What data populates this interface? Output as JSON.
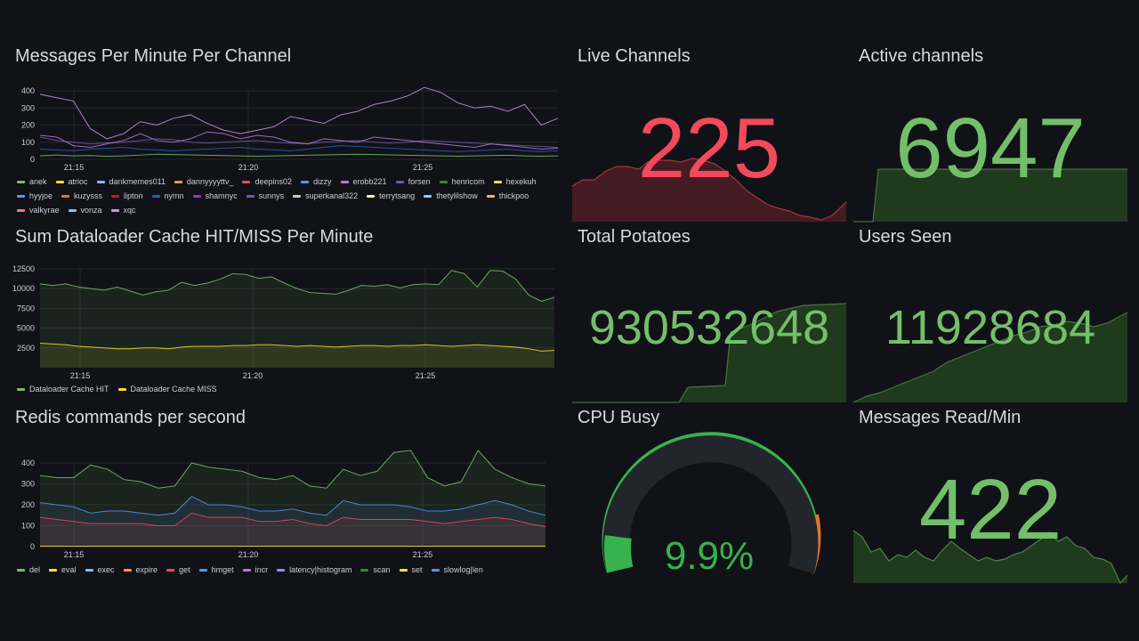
{
  "panels": {
    "messages": {
      "title": "Messages Per Minute Per Channel",
      "legend": [
        {
          "name": "anek",
          "color": "#73bf69"
        },
        {
          "name": "atrioc",
          "color": "#fade2a"
        },
        {
          "name": "dankmemes011",
          "color": "#8ab8ff"
        },
        {
          "name": "dannyyyyttv_",
          "color": "#ff9830"
        },
        {
          "name": "deepins02",
          "color": "#f2495c"
        },
        {
          "name": "dizzy",
          "color": "#5794f2"
        },
        {
          "name": "erobb221",
          "color": "#b877d9"
        },
        {
          "name": "forsen",
          "color": "#705da0"
        },
        {
          "name": "henricom",
          "color": "#37872d"
        },
        {
          "name": "hexekuh",
          "color": "#fade2a"
        },
        {
          "name": "hyyjoe",
          "color": "#5794f2"
        },
        {
          "name": "kuzysss",
          "color": "#e0752d"
        },
        {
          "name": "lipton",
          "color": "#c4162a"
        },
        {
          "name": "nymn",
          "color": "#1f60c4"
        },
        {
          "name": "shamnyc",
          "color": "#8f3bb8"
        },
        {
          "name": "sunnys",
          "color": "#705da0"
        },
        {
          "name": "superkanal322",
          "color": "#b6d7a8"
        },
        {
          "name": "terrytsang",
          "color": "#fff899"
        },
        {
          "name": "thetylilshow",
          "color": "#8ac8ff"
        },
        {
          "name": "thickpoo",
          "color": "#ffb357"
        },
        {
          "name": "valkyrae",
          "color": "#ff7383"
        },
        {
          "name": "vonza",
          "color": "#8ab8ff"
        },
        {
          "name": "xqc",
          "color": "#ca95e5"
        }
      ]
    },
    "cache": {
      "title": "Sum Dataloader Cache HIT/MISS Per Minute",
      "legend": [
        {
          "name": "Dataloader Cache HIT",
          "color": "#73bf69"
        },
        {
          "name": "Dataloader Cache MISS",
          "color": "#fade2a"
        }
      ]
    },
    "redis": {
      "title": "Redis commands per second",
      "legend": [
        {
          "name": "del",
          "color": "#73bf69"
        },
        {
          "name": "eval",
          "color": "#fade2a"
        },
        {
          "name": "exec",
          "color": "#8ab8ff"
        },
        {
          "name": "expire",
          "color": "#ff9830"
        },
        {
          "name": "get",
          "color": "#f2495c"
        },
        {
          "name": "hmget",
          "color": "#5794f2"
        },
        {
          "name": "incr",
          "color": "#b877d9"
        },
        {
          "name": "latency|histogram",
          "color": "#8f8ff0"
        },
        {
          "name": "scan",
          "color": "#37872d"
        },
        {
          "name": "set",
          "color": "#fade2a"
        },
        {
          "name": "slowlog|len",
          "color": "#5794f2"
        }
      ]
    },
    "live_channels": {
      "title": "Live Channels",
      "value": "225",
      "color": "#f2495c"
    },
    "active_channels": {
      "title": "Active channels",
      "value": "6947",
      "color": "#73bf69"
    },
    "total_potatoes": {
      "title": "Total Potatoes",
      "value": "930532648",
      "color": "#73bf69"
    },
    "users_seen": {
      "title": "Users Seen",
      "value": "11928684",
      "color": "#73bf69"
    },
    "cpu_busy": {
      "title": "CPU Busy",
      "value": "9.9%",
      "color": "#37b24d",
      "percent": 9.9
    },
    "messages_read": {
      "title": "Messages Read/Min",
      "value": "422",
      "color": "#73bf69"
    }
  },
  "chart_data": [
    {
      "type": "line",
      "title": "Messages Per Minute Per Channel",
      "ylim": [
        0,
        400
      ],
      "y_ticks": [
        "0",
        "100",
        "200",
        "300",
        "400"
      ],
      "x_ticks": [
        "21:15",
        "21:20",
        "21:25"
      ],
      "series": [
        {
          "name": "xqc",
          "values": [
            380,
            360,
            340,
            180,
            120,
            150,
            220,
            200,
            240,
            260,
            210,
            170,
            150,
            170,
            190,
            250,
            230,
            210,
            260,
            280,
            320,
            340,
            370,
            420,
            390,
            330,
            300,
            310,
            280,
            320,
            200,
            240
          ]
        },
        {
          "name": "forsen",
          "values": [
            130,
            110,
            100,
            90,
            95,
            100,
            110,
            120,
            115,
            100,
            95,
            100,
            105,
            110,
            100,
            95,
            90,
            100,
            105,
            110,
            100,
            95,
            100,
            110,
            105,
            100,
            95,
            90,
            85,
            80,
            75,
            70
          ]
        },
        {
          "name": "erobb221",
          "values": [
            140,
            130,
            80,
            70,
            90,
            110,
            150,
            110,
            100,
            120,
            160,
            150,
            120,
            140,
            130,
            100,
            90,
            120,
            110,
            100,
            130,
            120,
            110,
            100,
            90,
            80,
            70,
            90,
            80,
            70,
            60,
            65
          ]
        },
        {
          "name": "nymn",
          "values": [
            60,
            55,
            50,
            60,
            65,
            70,
            60,
            55,
            50,
            55,
            60,
            65,
            70,
            60,
            55,
            50,
            60,
            70,
            80,
            75,
            70,
            65,
            60,
            55,
            50,
            45,
            50,
            55,
            60,
            50,
            45,
            50
          ]
        },
        {
          "name": "anek",
          "values": [
            20,
            25,
            20,
            22,
            18,
            20,
            25,
            30,
            28,
            26,
            24,
            22,
            20,
            18,
            20,
            22,
            24,
            26,
            28,
            30,
            28,
            26,
            24,
            22,
            20,
            18,
            20,
            22,
            24,
            20,
            18,
            20
          ]
        }
      ]
    },
    {
      "type": "area",
      "title": "Sum Dataloader Cache HIT/MISS Per Minute",
      "ylim": [
        0,
        12500
      ],
      "y_ticks": [
        "2500",
        "5000",
        "7500",
        "10000",
        "12500"
      ],
      "x_ticks": [
        "21:15",
        "21:20",
        "21:25"
      ],
      "series": [
        {
          "name": "Dataloader Cache HIT",
          "values": [
            10600,
            10400,
            10600,
            10200,
            10000,
            9800,
            10200,
            9700,
            9200,
            9600,
            9800,
            10800,
            10400,
            10700,
            11200,
            11900,
            11800,
            11300,
            11500,
            10700,
            10000,
            9500,
            9400,
            9300,
            9800,
            10400,
            10300,
            10500,
            10100,
            10500,
            10600,
            10500,
            12300,
            11900,
            10200,
            12300,
            12200,
            11200,
            9200,
            8400,
            8900
          ]
        },
        {
          "name": "Dataloader Cache MISS",
          "values": [
            3100,
            3000,
            2900,
            2700,
            2600,
            2500,
            2400,
            2400,
            2500,
            2500,
            2400,
            2600,
            2700,
            2700,
            2700,
            2800,
            2800,
            2900,
            2900,
            2800,
            2700,
            2800,
            2700,
            2600,
            2700,
            2800,
            2800,
            2700,
            2800,
            2800,
            2900,
            2800,
            2700,
            2800,
            2900,
            2800,
            2700,
            2600,
            2400,
            2100,
            2200
          ]
        }
      ]
    },
    {
      "type": "area",
      "title": "Redis commands per second",
      "ylim": [
        0,
        400
      ],
      "y_ticks": [
        "0",
        "100",
        "200",
        "300",
        "400"
      ],
      "x_ticks": [
        "21:15",
        "21:20",
        "21:25"
      ],
      "series": [
        {
          "name": "del",
          "values": [
            340,
            330,
            330,
            390,
            370,
            320,
            310,
            280,
            290,
            400,
            380,
            370,
            360,
            330,
            320,
            340,
            290,
            280,
            370,
            340,
            360,
            450,
            460,
            330,
            290,
            310,
            460,
            370,
            330,
            300,
            290
          ]
        },
        {
          "name": "hmget",
          "values": [
            210,
            200,
            190,
            160,
            170,
            170,
            160,
            150,
            160,
            240,
            200,
            200,
            190,
            170,
            170,
            180,
            160,
            150,
            220,
            200,
            200,
            200,
            190,
            170,
            170,
            180,
            200,
            220,
            200,
            170,
            150
          ]
        },
        {
          "name": "get",
          "values": [
            140,
            130,
            120,
            110,
            110,
            110,
            110,
            100,
            100,
            160,
            140,
            140,
            140,
            120,
            120,
            130,
            110,
            100,
            140,
            130,
            130,
            130,
            130,
            120,
            110,
            120,
            130,
            140,
            130,
            110,
            95
          ]
        },
        {
          "name": "eval",
          "values": [
            2,
            2,
            2,
            2,
            2,
            2,
            2,
            2,
            2,
            2,
            2,
            2,
            2,
            2,
            2,
            2,
            2,
            2,
            2,
            2,
            2,
            2,
            2,
            2,
            2,
            2,
            2,
            2,
            2,
            2,
            2
          ]
        }
      ]
    }
  ]
}
